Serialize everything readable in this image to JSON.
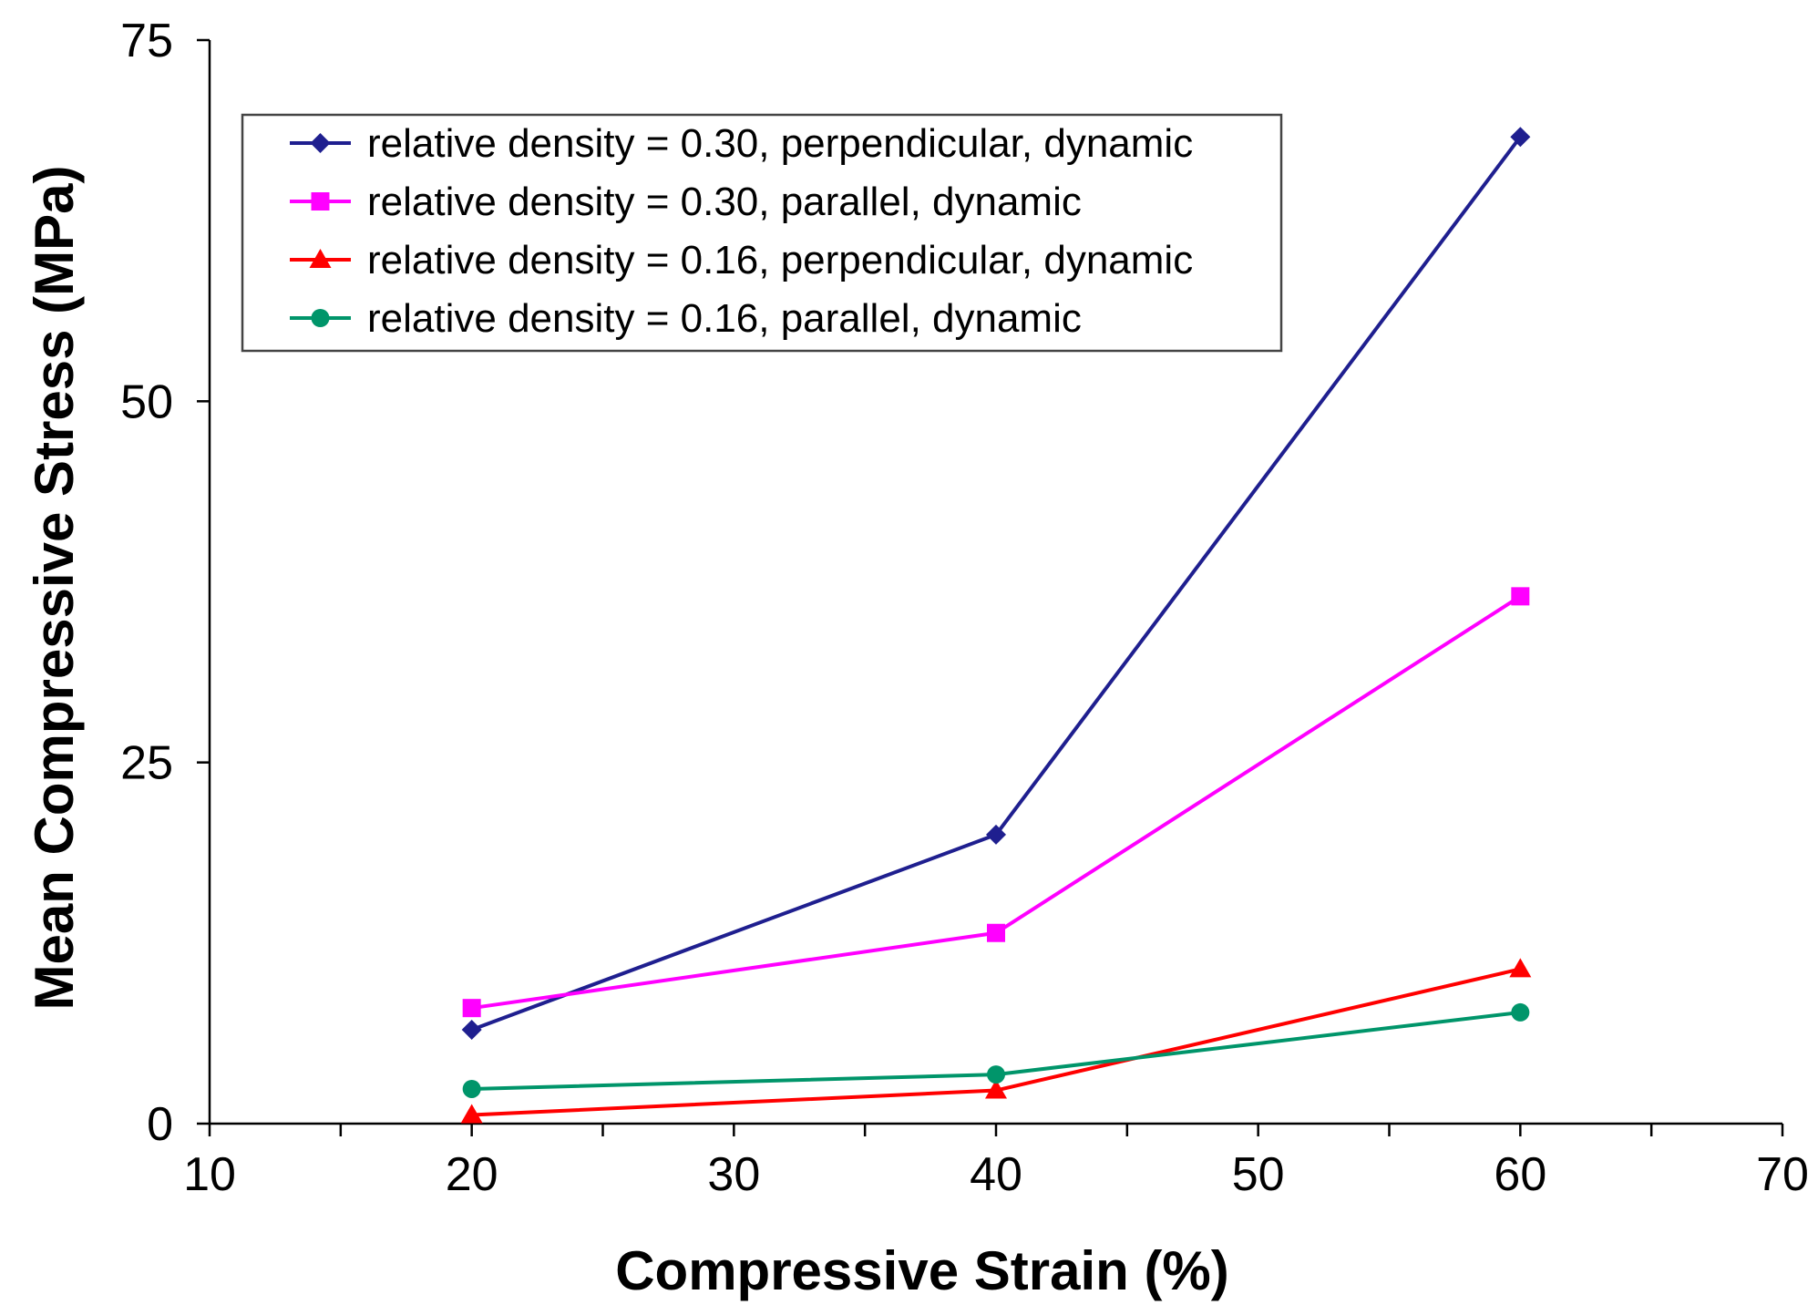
{
  "chart_data": {
    "type": "line",
    "title": "",
    "xlabel": "Compressive Strain (%)",
    "ylabel": "Mean Compressive Stress (MPa)",
    "xlim": [
      10,
      70
    ],
    "ylim": [
      0,
      75
    ],
    "xticks": [
      10,
      20,
      30,
      40,
      50,
      60,
      70
    ],
    "yticks": [
      0,
      25,
      50,
      75
    ],
    "x_minor_step": 5,
    "grid": false,
    "legend_position": "top-left",
    "x": [
      20,
      40,
      60
    ],
    "series": [
      {
        "name": "relative density = 0.30, perpendicular, dynamic",
        "values": [
          6.5,
          20.0,
          68.3
        ],
        "color": "#1f1f8f",
        "marker": "diamond"
      },
      {
        "name": "relative density = 0.30, parallel, dynamic",
        "values": [
          8.0,
          13.2,
          36.5
        ],
        "color": "#ff00ff",
        "marker": "square"
      },
      {
        "name": "relative density = 0.16, perpendicular, dynamic",
        "values": [
          0.6,
          2.3,
          10.7
        ],
        "color": "#ff0000",
        "marker": "triangle"
      },
      {
        "name": "relative density = 0.16, parallel, dynamic",
        "values": [
          2.4,
          3.4,
          7.7
        ],
        "color": "#00956a",
        "marker": "circle"
      }
    ]
  }
}
